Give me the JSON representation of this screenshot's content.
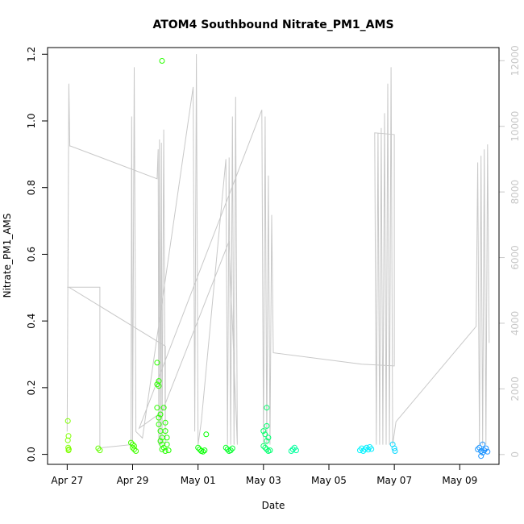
{
  "chart_data": {
    "type": "scatter",
    "title": "ATOM4 Southbound Nitrate_PM1_AMS",
    "xlabel": "Date",
    "ylabel": "Nitrate_PM1_AMS",
    "x_ticks": [
      "Apr 27",
      "Apr 29",
      "May 01",
      "May 03",
      "May 05",
      "May 07",
      "May 09"
    ],
    "x_tick_values": [
      0,
      2,
      4,
      6,
      8,
      10,
      12
    ],
    "xlim": [
      -0.6,
      13.2
    ],
    "ylim": [
      -0.03,
      1.22
    ],
    "y_ticks": [
      "0.0",
      "0.2",
      "0.4",
      "0.6",
      "0.8",
      "1.0",
      "1.2"
    ],
    "y_tick_values": [
      0,
      0.2,
      0.4,
      0.6,
      0.8,
      1.0,
      1.2
    ],
    "right_axis": {
      "ticks": [
        "0",
        "2000",
        "4000",
        "6000",
        "8000",
        "10000",
        "12000"
      ],
      "tick_values": [
        0,
        2000,
        4000,
        6000,
        8000,
        10000,
        12000
      ],
      "lim": [
        -300,
        12400
      ],
      "color": "#c8c8c8"
    },
    "grid": false,
    "point_style": "open-circle",
    "color_scale": [
      "#7fff00",
      "#00ff00",
      "#00ffff",
      "#1e90ff"
    ],
    "series": [
      {
        "values": [
          [
            0.02,
            0.1
          ],
          [
            0.04,
            0.055
          ],
          [
            0.02,
            0.042
          ],
          [
            0.03,
            0.02
          ],
          [
            0.04,
            0.012
          ],
          [
            0.05,
            0.015
          ],
          [
            0.95,
            0.018
          ],
          [
            1.0,
            0.012
          ],
          [
            1.95,
            0.035
          ],
          [
            2.0,
            0.03
          ],
          [
            2.0,
            0.02
          ],
          [
            2.05,
            0.015
          ],
          [
            2.1,
            0.01
          ],
          [
            2.05,
            0.025
          ],
          [
            2.75,
            0.275
          ],
          [
            2.8,
            0.22
          ],
          [
            2.75,
            0.21
          ],
          [
            2.8,
            0.205
          ],
          [
            2.75,
            0.14
          ],
          [
            2.8,
            0.11
          ],
          [
            2.85,
            0.12
          ],
          [
            2.8,
            0.09
          ],
          [
            2.85,
            0.07
          ],
          [
            2.9,
            0.05
          ],
          [
            2.85,
            0.04
          ],
          [
            2.9,
            0.03
          ],
          [
            2.95,
            0.02
          ],
          [
            3.0,
            0.01
          ],
          [
            2.95,
            0.14
          ],
          [
            3.0,
            0.095
          ],
          [
            3.0,
            0.07
          ],
          [
            3.05,
            0.05
          ],
          [
            3.05,
            0.03
          ],
          [
            2.9,
            0.015
          ],
          [
            3.1,
            0.012
          ],
          [
            2.9,
            1.18
          ],
          [
            4.0,
            0.02
          ],
          [
            4.05,
            0.015
          ],
          [
            4.1,
            0.01
          ],
          [
            4.15,
            0.008
          ],
          [
            4.2,
            0.012
          ],
          [
            4.25,
            0.06
          ],
          [
            4.85,
            0.02
          ],
          [
            4.9,
            0.015
          ],
          [
            4.95,
            0.01
          ],
          [
            5.0,
            0.012
          ],
          [
            5.05,
            0.018
          ],
          [
            6.0,
            0.07
          ],
          [
            6.05,
            0.06
          ],
          [
            6.1,
            0.085
          ],
          [
            6.15,
            0.05
          ],
          [
            6.1,
            0.04
          ],
          [
            6.1,
            0.14
          ],
          [
            6.0,
            0.025
          ],
          [
            6.05,
            0.02
          ],
          [
            6.1,
            0.015
          ],
          [
            6.15,
            0.01
          ],
          [
            6.2,
            0.012
          ],
          [
            6.85,
            0.01
          ],
          [
            6.9,
            0.015
          ],
          [
            6.95,
            0.02
          ],
          [
            7.0,
            0.012
          ],
          [
            8.95,
            0.012
          ],
          [
            9.0,
            0.018
          ],
          [
            9.05,
            0.01
          ],
          [
            9.1,
            0.015
          ],
          [
            9.15,
            0.02
          ],
          [
            9.2,
            0.014
          ],
          [
            9.25,
            0.022
          ],
          [
            9.3,
            0.016
          ],
          [
            9.95,
            0.03
          ],
          [
            10.0,
            0.018
          ],
          [
            10.02,
            0.01
          ],
          [
            12.55,
            0.015
          ],
          [
            12.6,
            0.02
          ],
          [
            12.65,
            0.01
          ],
          [
            12.7,
            0.005
          ],
          [
            12.65,
            -0.005
          ],
          [
            12.7,
            0.03
          ],
          [
            12.75,
            0.012
          ],
          [
            12.8,
            0.018
          ],
          [
            12.85,
            0.008
          ]
        ]
      }
    ],
    "secondary_line": {
      "axis": "right",
      "color": "#c8c8c8",
      "points": [
        [
          0.0,
          700
        ],
        [
          0.05,
          11300
        ],
        [
          0.08,
          9400
        ],
        [
          0.1,
          9400
        ],
        [
          2.75,
          8400
        ],
        [
          2.78,
          9300
        ],
        [
          2.8,
          300
        ],
        [
          2.82,
          9600
        ],
        [
          2.85,
          300
        ],
        [
          2.88,
          9500
        ],
        [
          2.9,
          300
        ],
        [
          2.95,
          9900
        ],
        [
          3.0,
          300
        ],
        [
          3.0,
          3300
        ],
        [
          0.05,
          5100
        ],
        [
          0.0,
          5100
        ],
        [
          1.0,
          5100
        ],
        [
          1.0,
          200
        ],
        [
          1.95,
          300
        ],
        [
          1.97,
          10300
        ],
        [
          2.0,
          400
        ],
        [
          2.05,
          11800
        ],
        [
          2.1,
          700
        ],
        [
          2.3,
          500
        ],
        [
          3.85,
          11200
        ],
        [
          3.9,
          700
        ],
        [
          3.95,
          12200
        ],
        [
          4.0,
          300
        ],
        [
          4.1,
          1000
        ],
        [
          4.85,
          9000
        ],
        [
          4.9,
          300
        ],
        [
          4.95,
          9050
        ],
        [
          5.0,
          300
        ],
        [
          5.05,
          10300
        ],
        [
          5.1,
          300
        ],
        [
          5.15,
          10900
        ],
        [
          5.2,
          300
        ],
        [
          4.95,
          6500
        ],
        [
          2.9,
          1300
        ],
        [
          2.2,
          800
        ],
        [
          5.95,
          10500
        ],
        [
          6.0,
          300
        ],
        [
          6.05,
          10300
        ],
        [
          6.1,
          300
        ],
        [
          6.15,
          8500
        ],
        [
          6.2,
          300
        ],
        [
          6.25,
          7300
        ],
        [
          6.3,
          3100
        ],
        [
          9.0,
          2750
        ],
        [
          10.0,
          2700
        ],
        [
          10.0,
          9750
        ],
        [
          9.4,
          9800
        ],
        [
          9.45,
          300
        ],
        [
          9.5,
          9800
        ],
        [
          9.55,
          300
        ],
        [
          9.6,
          9950
        ],
        [
          9.65,
          300
        ],
        [
          9.7,
          10400
        ],
        [
          9.75,
          300
        ],
        [
          9.8,
          11300
        ],
        [
          9.85,
          300
        ],
        [
          9.9,
          11800
        ],
        [
          9.95,
          300
        ],
        [
          10.05,
          1000
        ],
        [
          12.5,
          3900
        ],
        [
          12.55,
          8900
        ],
        [
          12.6,
          300
        ],
        [
          12.65,
          9100
        ],
        [
          12.7,
          300
        ],
        [
          12.75,
          9300
        ],
        [
          12.8,
          300
        ],
        [
          12.85,
          9450
        ],
        [
          12.9,
          3400
        ]
      ]
    }
  }
}
